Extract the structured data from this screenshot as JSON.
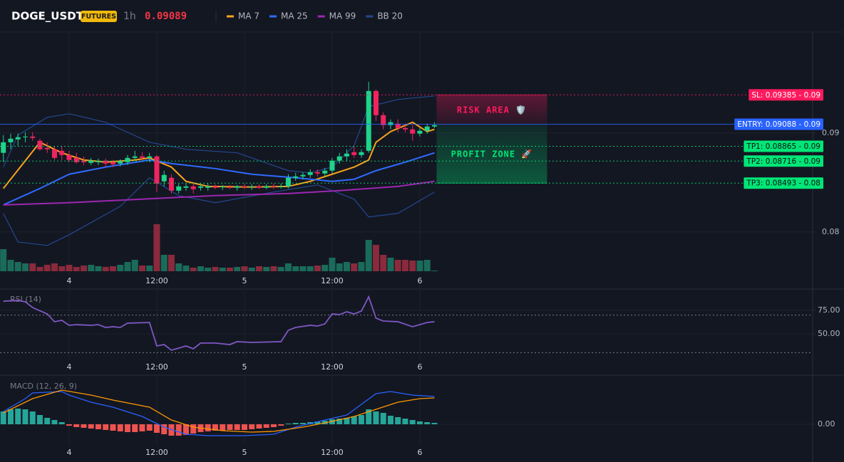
{
  "header": {
    "symbol": "DOGE_USDT",
    "market": "FUTURES",
    "interval": "1h",
    "last_price": "0.09089"
  },
  "chart_data": [
    {
      "type": "candlestick",
      "xlim": [
        -0.46,
        110.76
      ],
      "ylim": [
        0.0743,
        0.1002
      ],
      "xticks": [
        {
          "value": 9,
          "label": "4"
        },
        {
          "value": 21,
          "label": "12:00"
        },
        {
          "value": 33,
          "label": "5"
        },
        {
          "value": 45,
          "label": "12:00"
        },
        {
          "value": 57,
          "label": "6"
        }
      ],
      "yticks": [
        0.09,
        0.08
      ],
      "grid": true,
      "up_color": "#1fd38a",
      "down_color": "#f0245f",
      "volume_up_color": "#1b6b5a",
      "volume_down_color": "#8a2a3c",
      "open": [
        0.08799,
        0.08906,
        0.08935,
        0.08957,
        0.08964,
        0.08921,
        0.08849,
        0.08835,
        0.0882,
        0.08777,
        0.08748,
        0.0872,
        0.08698,
        0.08705,
        0.0872,
        0.08705,
        0.08691,
        0.08705,
        0.08748,
        0.08763,
        0.08748,
        0.08763,
        0.08511,
        0.08547,
        0.08417,
        0.08446,
        0.0846,
        0.08446,
        0.08446,
        0.0846,
        0.08453,
        0.08453,
        0.08446,
        0.0846,
        0.08453,
        0.0846,
        0.08446,
        0.0846,
        0.08453,
        0.0846,
        0.08547,
        0.08561,
        0.08576,
        0.08604,
        0.0859,
        0.08619,
        0.0872,
        0.08763,
        0.08806,
        0.08777,
        0.0882,
        0.09424,
        0.0918,
        0.09079,
        0.09094,
        0.0905,
        0.09036,
        0.08993,
        0.09022,
        0.09065
      ],
      "high": [
        0.08978,
        0.08993,
        0.08993,
        0.09007,
        0.09007,
        0.08942,
        0.08906,
        0.08863,
        0.08871,
        0.0882,
        0.08799,
        0.08763,
        0.08748,
        0.08741,
        0.08741,
        0.08727,
        0.08734,
        0.08777,
        0.0882,
        0.08806,
        0.08799,
        0.08777,
        0.08619,
        0.08583,
        0.08489,
        0.08489,
        0.08489,
        0.08489,
        0.08489,
        0.08482,
        0.08475,
        0.08475,
        0.08475,
        0.08489,
        0.08482,
        0.08482,
        0.08482,
        0.08489,
        0.08489,
        0.08583,
        0.08597,
        0.08604,
        0.08633,
        0.08633,
        0.08647,
        0.08748,
        0.08799,
        0.08835,
        0.08863,
        0.08835,
        0.09518,
        0.09439,
        0.09209,
        0.09137,
        0.09137,
        0.09094,
        0.09079,
        0.0905,
        0.09094,
        0.09108
      ],
      "low": [
        0.08705,
        0.08835,
        0.08871,
        0.08906,
        0.08921,
        0.0882,
        0.08799,
        0.08727,
        0.08727,
        0.08705,
        0.08691,
        0.08676,
        0.08676,
        0.08676,
        0.08655,
        0.08655,
        0.08662,
        0.08676,
        0.0872,
        0.0872,
        0.08705,
        0.08403,
        0.0846,
        0.08388,
        0.08388,
        0.08417,
        0.08388,
        0.08417,
        0.08417,
        0.08432,
        0.08424,
        0.08432,
        0.08417,
        0.08432,
        0.08424,
        0.08432,
        0.08432,
        0.08432,
        0.08439,
        0.08439,
        0.08518,
        0.08532,
        0.08547,
        0.08561,
        0.08561,
        0.0859,
        0.08691,
        0.0872,
        0.08748,
        0.08748,
        0.08799,
        0.09122,
        0.09036,
        0.09036,
        0.09007,
        0.09007,
        0.08921,
        0.08964,
        0.08993,
        0.0905
      ],
      "close": [
        0.08906,
        0.08942,
        0.08957,
        0.08964,
        0.0895,
        0.08835,
        0.08835,
        0.08748,
        0.08777,
        0.08727,
        0.08705,
        0.08705,
        0.0872,
        0.08712,
        0.08691,
        0.08683,
        0.08712,
        0.08748,
        0.08763,
        0.08748,
        0.08763,
        0.08489,
        0.08576,
        0.08417,
        0.0846,
        0.0846,
        0.08432,
        0.0846,
        0.0846,
        0.08446,
        0.0846,
        0.08446,
        0.0846,
        0.08453,
        0.0846,
        0.08446,
        0.0846,
        0.08453,
        0.0846,
        0.08547,
        0.08561,
        0.08576,
        0.08604,
        0.0859,
        0.08619,
        0.0872,
        0.08763,
        0.08791,
        0.08777,
        0.08806,
        0.09424,
        0.0918,
        0.09079,
        0.09108,
        0.0905,
        0.09036,
        0.08993,
        0.09022,
        0.09065,
        0.09079
      ],
      "volume": [
        3100000,
        1600000,
        1300000,
        1100000,
        1100000,
        600000,
        900000,
        1100000,
        700000,
        900000,
        600000,
        800000,
        900000,
        700000,
        600000,
        700000,
        900000,
        1300000,
        1600000,
        800000,
        800000,
        6600000,
        2300000,
        2300000,
        1100000,
        800000,
        500000,
        700000,
        500000,
        600000,
        500000,
        500000,
        600000,
        700000,
        500000,
        700000,
        600000,
        700000,
        600000,
        1100000,
        700000,
        700000,
        700000,
        800000,
        900000,
        1900000,
        1100000,
        1300000,
        1100000,
        1300000,
        4400000,
        3700000,
        2300000,
        1900000,
        1600000,
        1600000,
        1500000,
        1500000,
        1600000,
        100000
      ],
      "series": [
        {
          "name": "MA 7",
          "color": "#f7a21b",
          "x": [
            0,
            5,
            8,
            11,
            14,
            18,
            20,
            23,
            25,
            28,
            34,
            39,
            42,
            45,
            48,
            50,
            51,
            53,
            56,
            58,
            59
          ],
          "values": [
            0.08439,
            0.08906,
            0.08799,
            0.08727,
            0.08705,
            0.08727,
            0.08748,
            0.08655,
            0.08511,
            0.0846,
            0.08453,
            0.0846,
            0.08511,
            0.08583,
            0.08655,
            0.08727,
            0.08906,
            0.09014,
            0.09108,
            0.09014,
            0.09036
          ]
        },
        {
          "name": "MA 25",
          "color": "#2f6bff",
          "x": [
            0,
            5,
            9,
            14,
            20,
            23,
            29,
            34,
            40,
            45,
            48,
            51,
            55,
            59
          ],
          "values": [
            0.08273,
            0.08439,
            0.08583,
            0.08655,
            0.08727,
            0.08691,
            0.0864,
            0.08583,
            0.08547,
            0.08511,
            0.08532,
            0.08619,
            0.08705,
            0.08799
          ]
        },
        {
          "name": "MA 99",
          "color": "#9c27b0",
          "x": [
            0,
            9,
            19,
            29,
            39,
            46,
            54,
            59
          ],
          "values": [
            0.08273,
            0.08295,
            0.08331,
            0.08367,
            0.08388,
            0.08417,
            0.0846,
            0.08511
          ]
        }
      ],
      "bands": [
        {
          "name": "BB 20",
          "color": "#24488f",
          "upper": {
            "x": [
              0,
              2,
              6,
              9,
              14,
              20,
              25,
              32,
              39,
              42,
              45,
              48,
              50,
              54,
              59
            ],
            "values": [
              0.08655,
              0.08978,
              0.09158,
              0.09194,
              0.09108,
              0.08906,
              0.08835,
              0.08799,
              0.08619,
              0.08597,
              0.08655,
              0.08871,
              0.09266,
              0.09338,
              0.09374
            ]
          },
          "lower": {
            "x": [
              0,
              2,
              6,
              9,
              16,
              20,
              24,
              29,
              37,
              43,
              48,
              50,
              54,
              59
            ],
            "values": [
              0.08187,
              0.07899,
              0.07863,
              0.07971,
              0.08259,
              0.08547,
              0.08367,
              0.08295,
              0.08403,
              0.08475,
              0.08331,
              0.08151,
              0.08187,
              0.08403
            ]
          }
        }
      ],
      "levels": [
        {
          "label": "SL: 0.09385 - 0.09",
          "value": 0.09385,
          "color": "#ff1a5e",
          "text_color": "#ffffff",
          "line_style": "dotted"
        },
        {
          "label": "ENTRY: 0.09088 - 0.09",
          "value": 0.09088,
          "color": "#2962ff",
          "text_color": "#ffffff",
          "line_style": "solid"
        },
        {
          "label": "TP1: 0.08865 - 0.09",
          "value": 0.08865,
          "color": "#00e676",
          "text_color": "#0b0e14",
          "line_style": "dotted"
        },
        {
          "label": "TP2: 0.08716 - 0.09",
          "value": 0.08716,
          "color": "#00e676",
          "text_color": "#0b0e14",
          "line_style": "dotted"
        },
        {
          "label": "TP3: 0.08493 - 0.08",
          "value": 0.08493,
          "color": "#00e676",
          "text_color": "#0b0e14",
          "line_style": "dotted"
        }
      ],
      "zones": [
        {
          "label": "RISK AREA 🛡️",
          "range": [
            0.09088,
            0.09385
          ],
          "color": "#ff1a5e"
        },
        {
          "label": "PROFIT ZONE 🚀",
          "range": [
            0.08493,
            0.09088
          ],
          "color": "#00e676"
        }
      ]
    },
    {
      "type": "line",
      "title": "RSI (14)",
      "xlim": [
        -0.46,
        110.76
      ],
      "ylim": [
        22.7,
        96.2
      ],
      "xticks": [
        {
          "value": 9,
          "label": "4"
        },
        {
          "value": 21,
          "label": "12:00"
        },
        {
          "value": 33,
          "label": "5"
        },
        {
          "value": 45,
          "label": "12:00"
        },
        {
          "value": 57,
          "label": "6"
        }
      ],
      "yticks": [
        {
          "value": 75,
          "label": "75.00"
        },
        {
          "value": 50,
          "label": "50.00"
        }
      ],
      "grid": true,
      "levels": [
        70,
        30
      ],
      "series": [
        {
          "color": "#7e57c2",
          "x": [
            0,
            2,
            3,
            4,
            6,
            7,
            8,
            9,
            10,
            12,
            13,
            14,
            15,
            16,
            17,
            20,
            21,
            22,
            23,
            24,
            25,
            26,
            27,
            29,
            30,
            31,
            32,
            34,
            38,
            39,
            40,
            42,
            43,
            44,
            45,
            46,
            47,
            48,
            49,
            50,
            51,
            52,
            54,
            56,
            58,
            59
          ],
          "values": [
            84.8,
            85.6,
            84.1,
            78.0,
            71.2,
            62.9,
            64.4,
            59.1,
            59.8,
            59.1,
            59.8,
            56.8,
            57.6,
            56.8,
            61.4,
            62.1,
            37.1,
            38.6,
            32.6,
            34.8,
            37.1,
            34.1,
            40.2,
            40.2,
            39.4,
            38.6,
            41.7,
            40.9,
            41.7,
            53.8,
            56.8,
            59.1,
            58.3,
            60.6,
            71.2,
            70.5,
            73.5,
            71.2,
            74.2,
            89.4,
            66.7,
            63.6,
            62.9,
            57.6,
            62.1,
            62.9
          ]
        }
      ]
    },
    {
      "type": "macd",
      "title": "MACD (12, 26, 9)",
      "xlim": [
        -0.46,
        110.76
      ],
      "ylim": [
        -0.00029,
        0.00066
      ],
      "xticks": [
        {
          "value": 9,
          "label": "4"
        },
        {
          "value": 21,
          "label": "12:00"
        },
        {
          "value": 33,
          "label": "5"
        },
        {
          "value": 45,
          "label": "12:00"
        },
        {
          "value": 57,
          "label": "6"
        }
      ],
      "yticks": [
        {
          "value": 0,
          "label": "0.00"
        }
      ],
      "grid": true,
      "histogram": {
        "up_color": "#26a69a",
        "down_color": "#ef5350",
        "values": [
          0.00018,
          0.00021,
          0.00022,
          0.00021,
          0.00018,
          0.00013,
          9e-05,
          6e-05,
          3e-05,
          -2e-05,
          -4e-05,
          -5e-05,
          -6e-05,
          -7e-05,
          -8e-05,
          -9e-05,
          -0.0001,
          -0.00011,
          -0.00011,
          -0.0001,
          -9e-05,
          -0.00012,
          -0.00014,
          -0.00016,
          -0.00016,
          -0.00015,
          -0.00013,
          -0.00011,
          -0.0001,
          -9e-05,
          -9e-05,
          -8e-05,
          -8e-05,
          -8e-05,
          -7e-05,
          -6e-05,
          -5e-05,
          -4e-05,
          -2e-05,
          1e-05,
          2e-05,
          2e-05,
          3e-05,
          4e-05,
          5e-05,
          7e-05,
          8e-05,
          9e-05,
          0.00011,
          0.00013,
          0.00021,
          0.00018,
          0.00016,
          0.00012,
          0.0001,
          8e-05,
          6e-05,
          4e-05,
          3e-05,
          2e-05
        ]
      },
      "series": [
        {
          "color": "#2962ff",
          "x": [
            0,
            3,
            4,
            8,
            9,
            12,
            15,
            19,
            22,
            25,
            28,
            33,
            37,
            40,
            44,
            47,
            49,
            51,
            53,
            56,
            59
          ],
          "values": [
            0.00018,
            0.00036,
            0.00044,
            0.00046,
            0.00041,
            0.00031,
            0.00024,
            0.00011,
            -4e-05,
            -0.00014,
            -0.00016,
            -0.00016,
            -0.00014,
            -4e-05,
            6e-05,
            0.00013,
            0.00028,
            0.00043,
            0.00046,
            0.00041,
            0.00039
          ]
        },
        {
          "color": "#ff9800",
          "x": [
            0,
            4,
            8,
            12,
            15,
            20,
            23,
            26,
            30,
            34,
            37,
            41,
            45,
            48,
            51,
            54,
            57,
            59
          ],
          "values": [
            0.00016,
            0.00036,
            0.00048,
            0.00041,
            0.00034,
            0.00024,
            6e-05,
            -4e-05,
            -9e-05,
            -0.00011,
            -0.0001,
            -4e-05,
            4e-05,
            0.00011,
            0.00021,
            0.00031,
            0.00036,
            0.00037
          ]
        }
      ]
    }
  ]
}
